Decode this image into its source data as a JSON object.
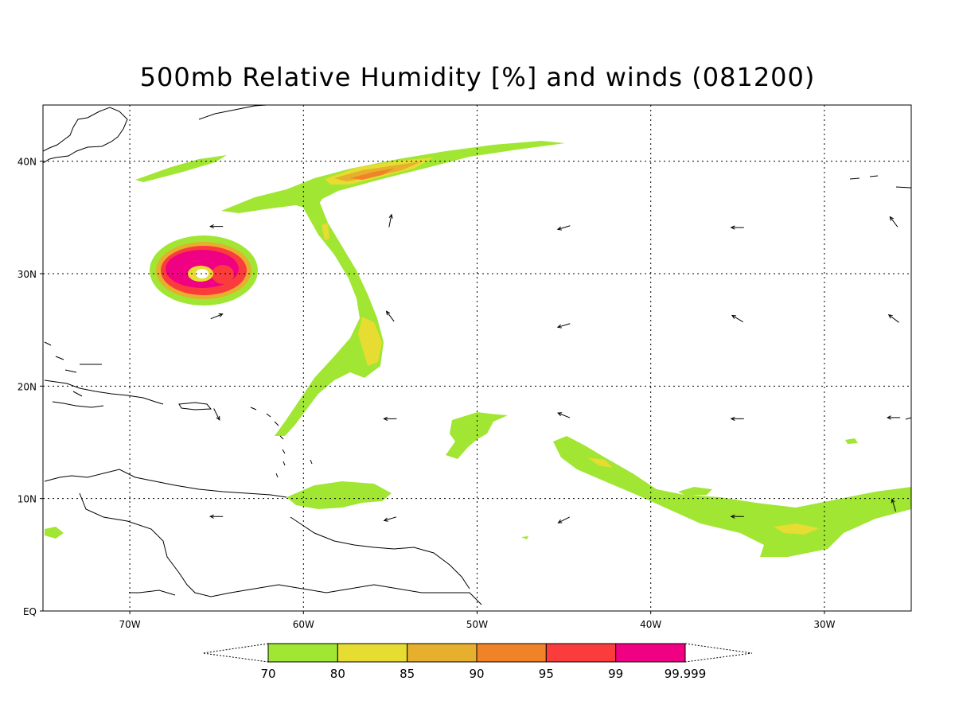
{
  "title": "500mb Relative Humidity [%] and winds (081200)",
  "map": {
    "lon_range": [
      -75,
      -25
    ],
    "lat_range": [
      0,
      45
    ],
    "lon_ticks": [
      {
        "value": -70,
        "label": "70W"
      },
      {
        "value": -60,
        "label": "60W"
      },
      {
        "value": -50,
        "label": "50W"
      },
      {
        "value": -40,
        "label": "40W"
      },
      {
        "value": -30,
        "label": "30W"
      }
    ],
    "lat_ticks": [
      {
        "value": 0,
        "label": "EQ"
      },
      {
        "value": 10,
        "label": "10N"
      },
      {
        "value": 20,
        "label": "20N"
      },
      {
        "value": 30,
        "label": "30N"
      },
      {
        "value": 40,
        "label": "40N"
      }
    ],
    "grid": true
  },
  "colorbar": {
    "colors": [
      "#a0e632",
      "#e6dc32",
      "#e6af2d",
      "#f08228",
      "#fa3c3c",
      "#f00082"
    ],
    "labels": [
      "70",
      "80",
      "85",
      "90",
      "95",
      "99",
      "99.999"
    ]
  },
  "winds": [
    {
      "lon": -65,
      "lat": 34.2,
      "u": -1,
      "v": 0
    },
    {
      "lon": -65,
      "lat": 26.2,
      "u": 1,
      "v": 0.4
    },
    {
      "lon": -65,
      "lat": 17.5,
      "u": 0.5,
      "v": -1
    },
    {
      "lon": -65,
      "lat": 8.4,
      "u": -1,
      "v": 0
    },
    {
      "lon": -55,
      "lat": 34.7,
      "u": 0.2,
      "v": 1
    },
    {
      "lon": -55,
      "lat": 26.2,
      "u": -0.6,
      "v": 0.8
    },
    {
      "lon": -55,
      "lat": 17.1,
      "u": -1,
      "v": 0
    },
    {
      "lon": -55,
      "lat": 8.2,
      "u": -1,
      "v": -0.3
    },
    {
      "lon": -45,
      "lat": 34.1,
      "u": -1,
      "v": -0.3
    },
    {
      "lon": -45,
      "lat": 25.4,
      "u": -1,
      "v": -0.3
    },
    {
      "lon": -45,
      "lat": 17.4,
      "u": -1,
      "v": 0.4
    },
    {
      "lon": -45,
      "lat": 8.1,
      "u": -1,
      "v": -0.5
    },
    {
      "lon": -35,
      "lat": 34.1,
      "u": -1,
      "v": 0
    },
    {
      "lon": -35,
      "lat": 26.0,
      "u": -1,
      "v": 0.6
    },
    {
      "lon": -35,
      "lat": 17.1,
      "u": -1,
      "v": 0
    },
    {
      "lon": -35,
      "lat": 8.4,
      "u": -1,
      "v": 0
    },
    {
      "lon": -26,
      "lat": 34.6,
      "u": -0.6,
      "v": 0.8
    },
    {
      "lon": -26,
      "lat": 26.0,
      "u": -0.8,
      "v": 0.6
    },
    {
      "lon": -26,
      "lat": 17.2,
      "u": -1,
      "v": 0
    },
    {
      "lon": -26,
      "lat": 9.4,
      "u": -0.3,
      "v": 1
    }
  ]
}
